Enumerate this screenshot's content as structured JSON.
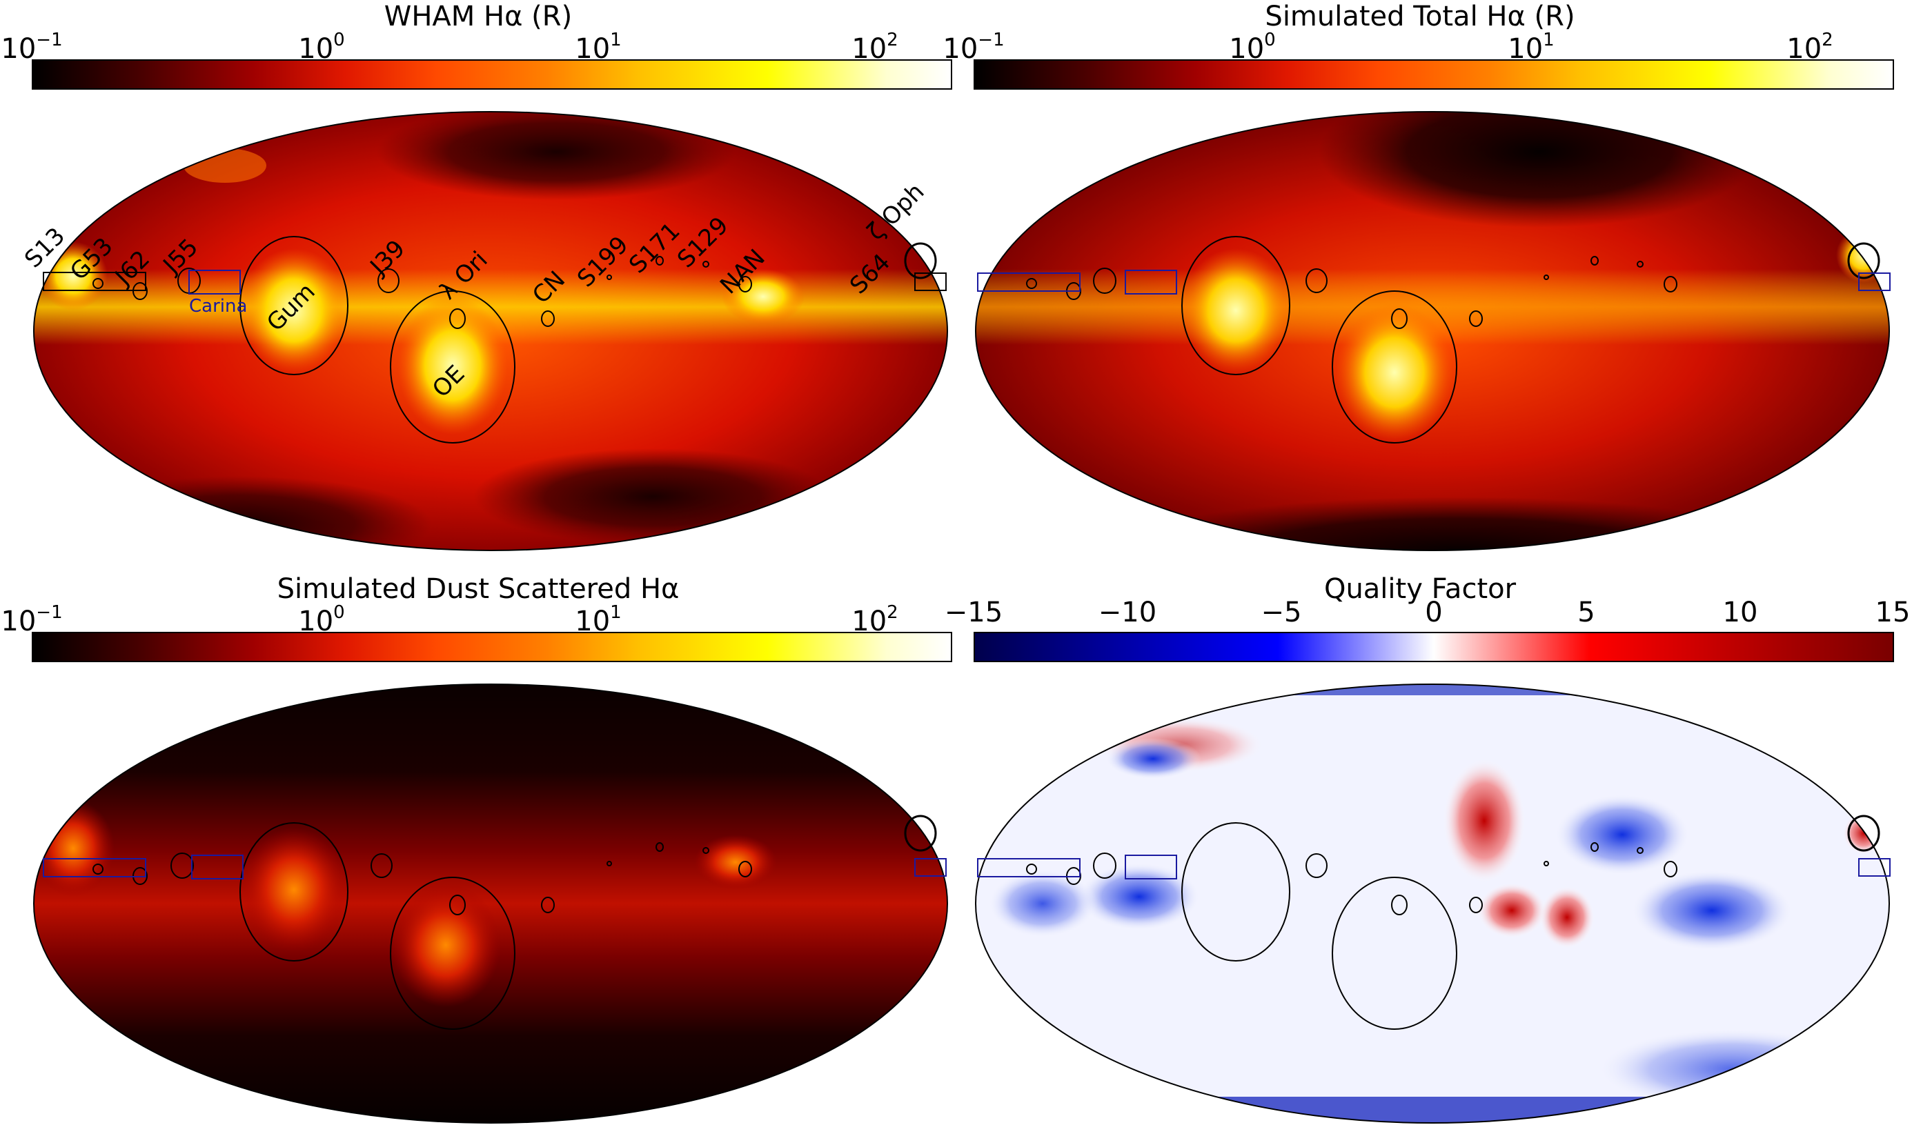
{
  "panels": {
    "wham": {
      "title": "WHAM Hα (R)",
      "ticks": [
        {
          "base": "10",
          "exp": "−1"
        },
        {
          "base": "10",
          "exp": "0"
        },
        {
          "base": "10",
          "exp": "1"
        },
        {
          "base": "10",
          "exp": "2"
        }
      ],
      "colormap": "hot",
      "labels": [
        "S13",
        "G53",
        "J62",
        "J55",
        "Carina",
        "Gum",
        "J39",
        "λ Ori",
        "OE",
        "CN",
        "S199",
        "S171",
        "S129",
        "NAN",
        "S64",
        "ζ Oph"
      ]
    },
    "sim_total": {
      "title": "Simulated Total Hα (R)",
      "ticks": [
        {
          "base": "10",
          "exp": "−1"
        },
        {
          "base": "10",
          "exp": "0"
        },
        {
          "base": "10",
          "exp": "1"
        },
        {
          "base": "10",
          "exp": "2"
        }
      ],
      "colormap": "hot"
    },
    "sim_dust": {
      "title": "Simulated Dust Scattered Hα",
      "ticks": [
        {
          "base": "10",
          "exp": "−1"
        },
        {
          "base": "10",
          "exp": "0"
        },
        {
          "base": "10",
          "exp": "1"
        },
        {
          "base": "10",
          "exp": "2"
        }
      ],
      "colormap": "hot"
    },
    "quality": {
      "title": "Quality Factor",
      "ticks": [
        "−15",
        "−10",
        "−5",
        "0",
        "5",
        "10",
        "15"
      ],
      "colormap": "seismic"
    }
  },
  "colors": {
    "hot_dark": "#0a0000",
    "hot_red": "#b00000",
    "hot_orange": "#ff6a00",
    "hot_yellow": "#ffee00",
    "hot_white": "#ffffff",
    "seismic_blue": "#00008c",
    "seismic_red": "#8c0000",
    "carina_box": "#1a1aa0"
  }
}
